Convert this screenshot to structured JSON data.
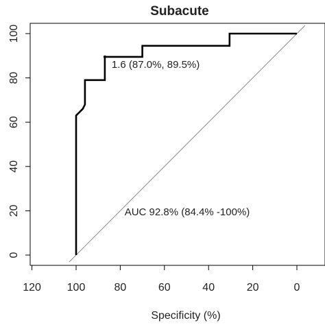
{
  "chart_data": {
    "type": "line",
    "title": "Subacute",
    "xlabel": "Specificity (%)",
    "ylabel": "",
    "x_reversed": true,
    "xlim": [
      105,
      -4
    ],
    "ylim": [
      -4,
      104
    ],
    "x_ticks": [
      120,
      100,
      80,
      60,
      40,
      20,
      0
    ],
    "y_ticks": [
      0,
      20,
      40,
      60,
      80,
      100
    ],
    "series": [
      {
        "x": [
          100,
          100,
          97,
          96,
          96,
          87,
          87,
          70,
          70,
          30.5,
          30.5,
          0
        ],
        "y": [
          0,
          63,
          66,
          68,
          79,
          79,
          89.5,
          89.5,
          94.5,
          94.5,
          100,
          100
        ]
      }
    ],
    "diagonal": {
      "x": [
        100,
        0
      ],
      "y": [
        0,
        100
      ]
    },
    "point": {
      "x": 87,
      "y": 89.5,
      "label": "1.6 (87.0%, 89.5%)"
    },
    "annotation": "AUC 92.8% (84.4% -100%)",
    "grid": false,
    "colors": {
      "curve": "#000000",
      "diagonal": "#888888",
      "axis": "#000000"
    }
  }
}
